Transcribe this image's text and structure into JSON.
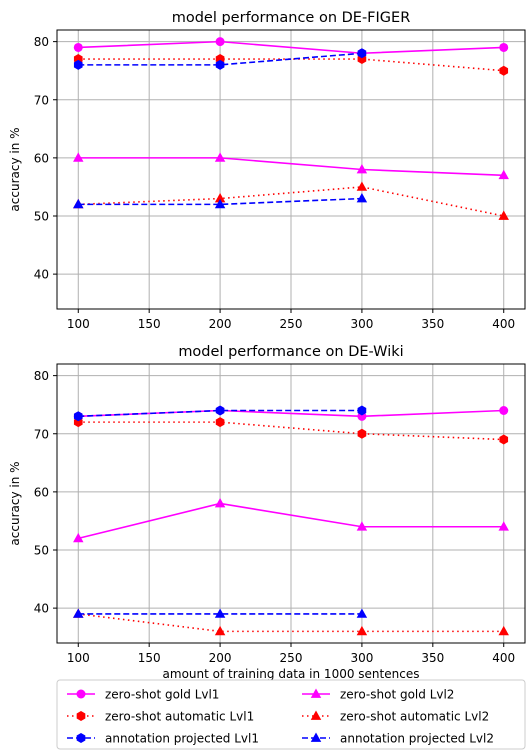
{
  "chart_data": [
    {
      "type": "line",
      "title": "model performance on DE-FIGER",
      "xlabel": "",
      "ylabel": "accuracy in %",
      "xlim": [
        85,
        415
      ],
      "ylim": [
        34,
        82
      ],
      "xticks": [
        100,
        150,
        200,
        250,
        300,
        350,
        400
      ],
      "yticks": [
        40,
        50,
        60,
        70,
        80
      ],
      "grid": true,
      "series": [
        {
          "name": "zero-shot gold Lvl1",
          "color": "#ff00ff",
          "dash": "solid",
          "marker": "circle",
          "x": [
            100,
            200,
            300,
            400
          ],
          "y": [
            79,
            80,
            78,
            79
          ]
        },
        {
          "name": "zero-shot automatic Lvl1",
          "color": "#ff0000",
          "dash": "dotted",
          "marker": "hexagon",
          "x": [
            100,
            200,
            300,
            400
          ],
          "y": [
            77,
            77,
            77,
            75
          ]
        },
        {
          "name": "annotation projected Lvl1",
          "color": "#0000ff",
          "dash": "dashed",
          "marker": "hexagon",
          "x": [
            100,
            200,
            300
          ],
          "y": [
            76,
            76,
            78
          ]
        },
        {
          "name": "zero-shot gold Lvl2",
          "color": "#ff00ff",
          "dash": "solid",
          "marker": "triangle",
          "x": [
            100,
            200,
            300,
            400
          ],
          "y": [
            60,
            60,
            58,
            57
          ]
        },
        {
          "name": "zero-shot automatic Lvl2",
          "color": "#ff0000",
          "dash": "dotted",
          "marker": "triangle",
          "x": [
            100,
            200,
            300,
            400
          ],
          "y": [
            52,
            53,
            55,
            50
          ]
        },
        {
          "name": "annotation projected Lvl2",
          "color": "#0000ff",
          "dash": "dashed",
          "marker": "triangle",
          "x": [
            100,
            200,
            300
          ],
          "y": [
            52,
            52,
            53
          ]
        }
      ]
    },
    {
      "type": "line",
      "title": "model performance on DE-Wiki",
      "xlabel": "amount of training data in 1000 sentences",
      "ylabel": "accuracy in %",
      "xlim": [
        85,
        415
      ],
      "ylim": [
        34,
        82
      ],
      "xticks": [
        100,
        150,
        200,
        250,
        300,
        350,
        400
      ],
      "yticks": [
        40,
        50,
        60,
        70,
        80
      ],
      "grid": true,
      "series": [
        {
          "name": "zero-shot gold Lvl1",
          "color": "#ff00ff",
          "dash": "solid",
          "marker": "circle",
          "x": [
            100,
            200,
            300,
            400
          ],
          "y": [
            73,
            74,
            73,
            74
          ]
        },
        {
          "name": "zero-shot automatic Lvl1",
          "color": "#ff0000",
          "dash": "dotted",
          "marker": "hexagon",
          "x": [
            100,
            200,
            300,
            400
          ],
          "y": [
            72,
            72,
            70,
            69
          ]
        },
        {
          "name": "annotation projected Lvl1",
          "color": "#0000ff",
          "dash": "dashed",
          "marker": "hexagon",
          "x": [
            100,
            200,
            300
          ],
          "y": [
            73,
            74,
            74
          ]
        },
        {
          "name": "zero-shot gold Lvl2",
          "color": "#ff00ff",
          "dash": "solid",
          "marker": "triangle",
          "x": [
            100,
            200,
            300,
            400
          ],
          "y": [
            52,
            58,
            54,
            54
          ]
        },
        {
          "name": "zero-shot automatic Lvl2",
          "color": "#ff0000",
          "dash": "dotted",
          "marker": "triangle",
          "x": [
            100,
            200,
            300,
            400
          ],
          "y": [
            39,
            36,
            36,
            36
          ]
        },
        {
          "name": "annotation projected Lvl2",
          "color": "#0000ff",
          "dash": "dashed",
          "marker": "triangle",
          "x": [
            100,
            200,
            300
          ],
          "y": [
            39,
            39,
            39
          ]
        }
      ]
    }
  ],
  "legend": {
    "placement": "bottom",
    "entries": [
      {
        "label": "zero-shot gold Lvl1",
        "color": "#ff00ff",
        "dash": "solid",
        "marker": "circle"
      },
      {
        "label": "zero-shot gold Lvl2",
        "color": "#ff00ff",
        "dash": "solid",
        "marker": "triangle"
      },
      {
        "label": "zero-shot automatic Lvl1",
        "color": "#ff0000",
        "dash": "dotted",
        "marker": "hexagon"
      },
      {
        "label": "zero-shot automatic Lvl2",
        "color": "#ff0000",
        "dash": "dotted",
        "marker": "triangle"
      },
      {
        "label": "annotation projected Lvl1",
        "color": "#0000ff",
        "dash": "dashed",
        "marker": "hexagon"
      },
      {
        "label": "annotation projected Lvl2",
        "color": "#0000ff",
        "dash": "dashed",
        "marker": "triangle"
      }
    ]
  }
}
